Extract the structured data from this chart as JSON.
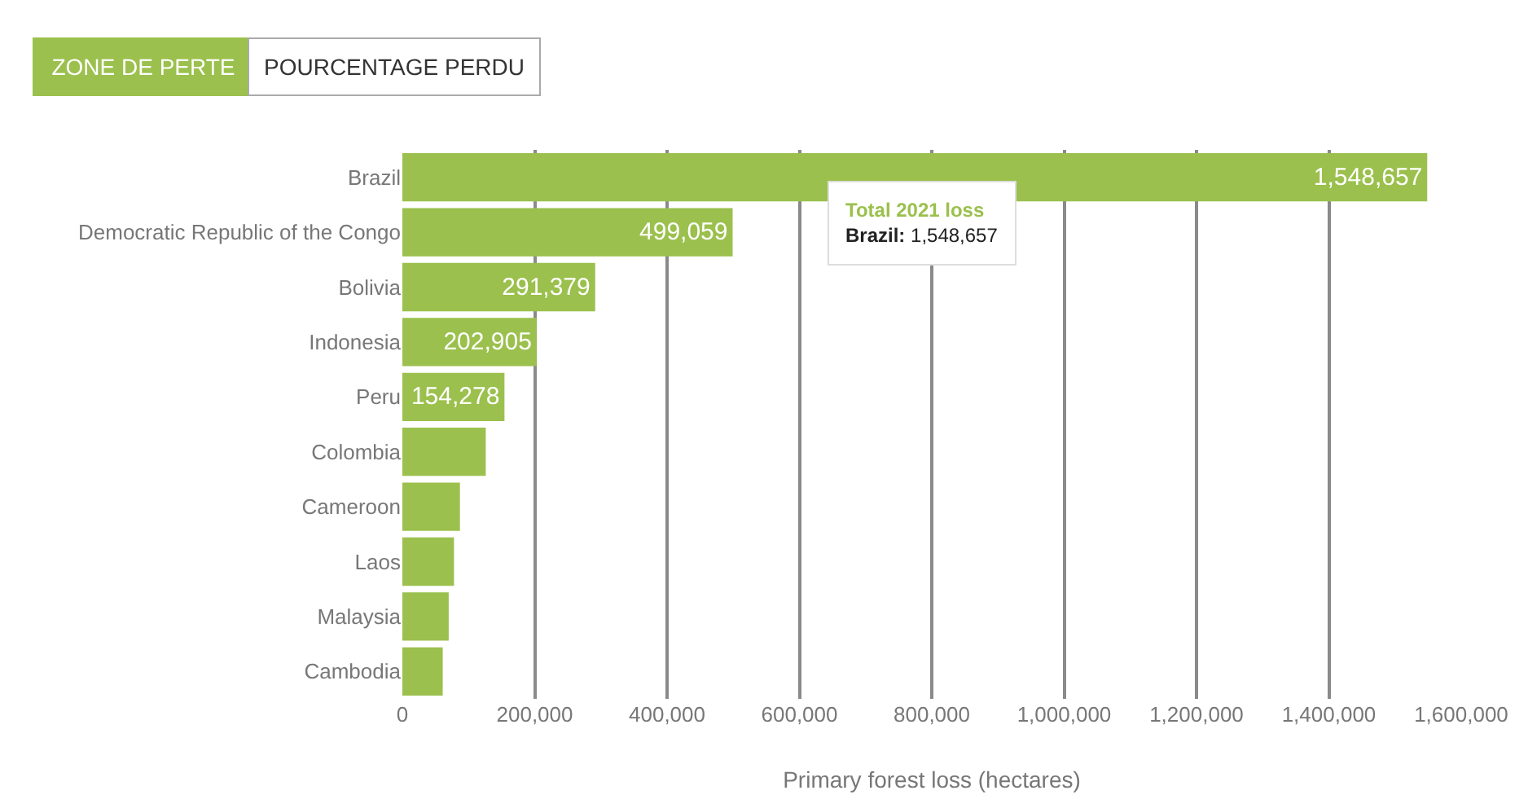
{
  "chart_data": {
    "type": "bar",
    "orientation": "horizontal",
    "categories": [
      "Brazil",
      "Democratic Republic of the Congo",
      "Bolivia",
      "Indonesia",
      "Peru",
      "Colombia",
      "Cameroon",
      "Laos",
      "Malaysia",
      "Cambodia"
    ],
    "values": [
      1548657,
      499059,
      291379,
      202905,
      154278,
      126000,
      87000,
      78000,
      70000,
      61000
    ],
    "value_labels": [
      "1,548,657",
      "499,059",
      "291,379",
      "202,905",
      "154,278",
      null,
      null,
      null,
      null,
      null
    ],
    "color": "#9bc04d",
    "xlabel": "Primary forest loss (hectares)",
    "xlim": [
      0,
      1600000
    ],
    "xticks": [
      {
        "value": 0,
        "label": "0"
      },
      {
        "value": 200000,
        "label": "200,000"
      },
      {
        "value": 400000,
        "label": "400,000"
      },
      {
        "value": 600000,
        "label": "600,000"
      },
      {
        "value": 800000,
        "label": "800,000"
      },
      {
        "value": 1000000,
        "label": "1,000,000"
      },
      {
        "value": 1200000,
        "label": "1,200,000"
      },
      {
        "value": 1400000,
        "label": "1,400,000"
      },
      {
        "value": 1600000,
        "label": "1,600,000"
      }
    ],
    "grid": "x",
    "legend": false,
    "annotations": [
      "ZONE DE PERTE",
      "POURCENTAGE PERDU",
      "Total 2021 loss\nBrazil: 1,548,657"
    ]
  }
}
